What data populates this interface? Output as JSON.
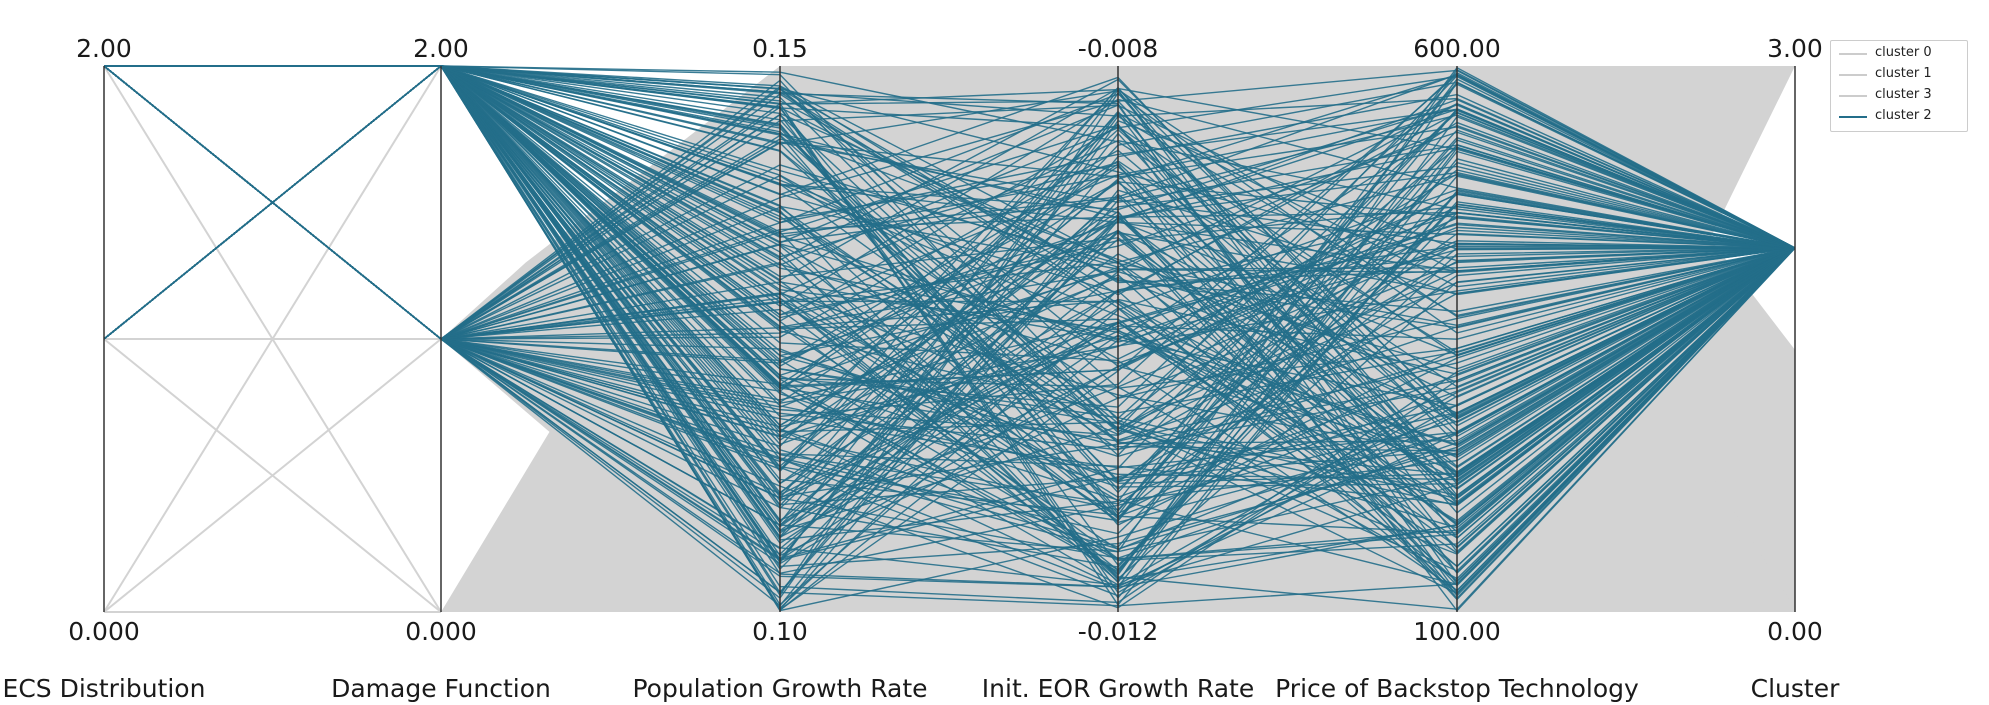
{
  "chart_data": {
    "type": "parallel_coordinates",
    "axes": [
      {
        "name": "ECS Distribution",
        "top_label": "2.00",
        "bottom_label": "0.000",
        "min": 0,
        "max": 2
      },
      {
        "name": "Damage Function",
        "top_label": "2.00",
        "bottom_label": "0.000",
        "min": 0,
        "max": 2
      },
      {
        "name": "Population Growth Rate",
        "top_label": "0.15",
        "bottom_label": "0.10",
        "min": 0.1,
        "max": 0.15
      },
      {
        "name": "Init. EOR Growth Rate",
        "top_label": "-0.008",
        "bottom_label": "-0.012",
        "min": -0.012,
        "max": -0.008
      },
      {
        "name": "Price of Backstop Technology",
        "top_label": "600.00",
        "bottom_label": "100.00",
        "min": 100,
        "max": 600
      },
      {
        "name": "Cluster",
        "top_label": "3.00",
        "bottom_label": "0.00",
        "min": 0,
        "max": 3
      }
    ],
    "highlight_cluster": 2,
    "series": [
      {
        "name": "cluster 0",
        "color": "#d3d3d3",
        "ecs_values": [
          0,
          1,
          2
        ],
        "damage_values": [
          0,
          1,
          2
        ],
        "cluster_value": 0
      },
      {
        "name": "cluster 1",
        "color": "#d3d3d3",
        "ecs_values": [
          0,
          1,
          2
        ],
        "damage_values": [
          0,
          1,
          2
        ],
        "cluster_value": 1
      },
      {
        "name": "cluster 3",
        "color": "#d3d3d3",
        "ecs_values": [
          0,
          1,
          2
        ],
        "damage_values": [
          0,
          1,
          2
        ],
        "cluster_value": 3
      },
      {
        "name": "cluster 2",
        "color": "#236e8a",
        "ecs_values": [
          1,
          2
        ],
        "damage_values": [
          1,
          2
        ],
        "cluster_value": 2
      }
    ],
    "grey_band_note": "Clusters 0, 1 and 3 fill the full range of the four continuous axes (shown as a dense grey band).",
    "legend_position": "top-right",
    "grid": false
  },
  "legend": {
    "items": [
      {
        "label": "cluster 0",
        "color": "#d3d3d3"
      },
      {
        "label": "cluster 1",
        "color": "#d3d3d3"
      },
      {
        "label": "cluster 3",
        "color": "#d3d3d3"
      },
      {
        "label": "cluster 2",
        "color": "#236e8a"
      }
    ]
  },
  "colors": {
    "highlight": "#236e8a",
    "context": "#d3d3d3",
    "axis": "#333333"
  }
}
